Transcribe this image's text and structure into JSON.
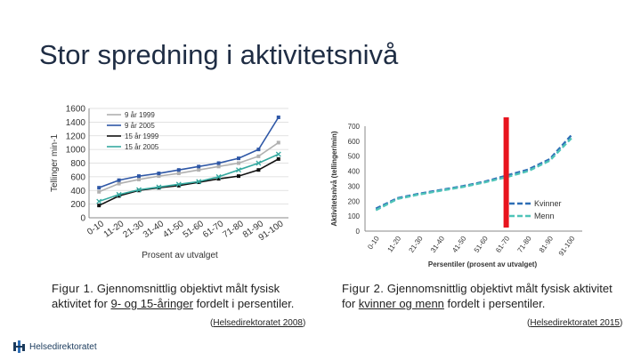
{
  "slide": {
    "title": "Stor spredning i aktivitetsnivå"
  },
  "captions": {
    "fig1": {
      "label": "Figur 1.",
      "text_a": " Gjennomsnittlig objektivt målt fysisk aktivitet for ",
      "underlined": "9- og 15-åringer",
      "text_b": " fordelt i persentiler.",
      "source_open": "(",
      "source_link": "Helsedirektoratet 2008",
      "source_close": ")"
    },
    "fig2": {
      "label": "Figur 2.",
      "text_a": " Gjennomsnittlig objektivt målt fysisk aktivitet for ",
      "underlined": "kvinner og menn",
      "text_b": " fordelt i persentiler.",
      "source_open": "(",
      "source_link": "Helsedirektoratet 2015",
      "source_close": ")"
    }
  },
  "logo": {
    "text": "Helsedirektoratet",
    "icon": "helsedirektoratet-logo-icon"
  },
  "chart_data": [
    {
      "type": "line",
      "categories": [
        "0-10",
        "11-20",
        "21-30",
        "31-40",
        "41-50",
        "51-60",
        "61-70",
        "71-80",
        "81-90",
        "91-100"
      ],
      "ylabel": "Tellinger min-1",
      "xlabel": "Prosent av utvalget",
      "ylim": [
        0,
        1600
      ],
      "yticks": [
        0,
        200,
        400,
        600,
        800,
        1000,
        1200,
        1400,
        1600
      ],
      "grid": true,
      "legend": "top-left",
      "series": [
        {
          "name": "9 år 1999",
          "color": "#b0b0b0",
          "marker": "square",
          "values": [
            380,
            500,
            560,
            610,
            650,
            700,
            750,
            800,
            900,
            1100
          ]
        },
        {
          "name": "9 år 2005",
          "color": "#2e57a6",
          "marker": "square",
          "values": [
            440,
            550,
            610,
            650,
            700,
            750,
            800,
            870,
            1000,
            1470
          ]
        },
        {
          "name": "15 år 1999",
          "color": "#111111",
          "marker": "square",
          "values": [
            180,
            320,
            400,
            440,
            470,
            520,
            570,
            610,
            700,
            860
          ]
        },
        {
          "name": "15 år 2005",
          "color": "#35a9a0",
          "marker": "x",
          "values": [
            240,
            340,
            410,
            450,
            490,
            530,
            600,
            700,
            800,
            930
          ]
        }
      ]
    },
    {
      "type": "line",
      "categories": [
        "0-10",
        "11-20",
        "21-30",
        "31-40",
        "41-50",
        "51-60",
        "61-70",
        "71-80",
        "81-90",
        "91-100"
      ],
      "ylabel": "Aktivitetsnivå (tellinger/min)",
      "xlabel": "Persentiler (prosent av utvalget)",
      "ylim": [
        0,
        700
      ],
      "yticks": [
        0,
        100,
        200,
        300,
        400,
        500,
        600,
        700
      ],
      "grid": false,
      "legend": "bottom-right",
      "series": [
        {
          "name": "Kvinner",
          "color": "#2e6eb5",
          "dash": true,
          "values": [
            150,
            220,
            250,
            275,
            300,
            330,
            370,
            410,
            480,
            640
          ]
        },
        {
          "name": "Menn",
          "color": "#4fc4b8",
          "dash": true,
          "values": [
            140,
            215,
            245,
            270,
            295,
            325,
            360,
            400,
            470,
            620
          ]
        }
      ],
      "highlight": {
        "category_index": 6.5,
        "color": "#e8141e"
      }
    }
  ]
}
